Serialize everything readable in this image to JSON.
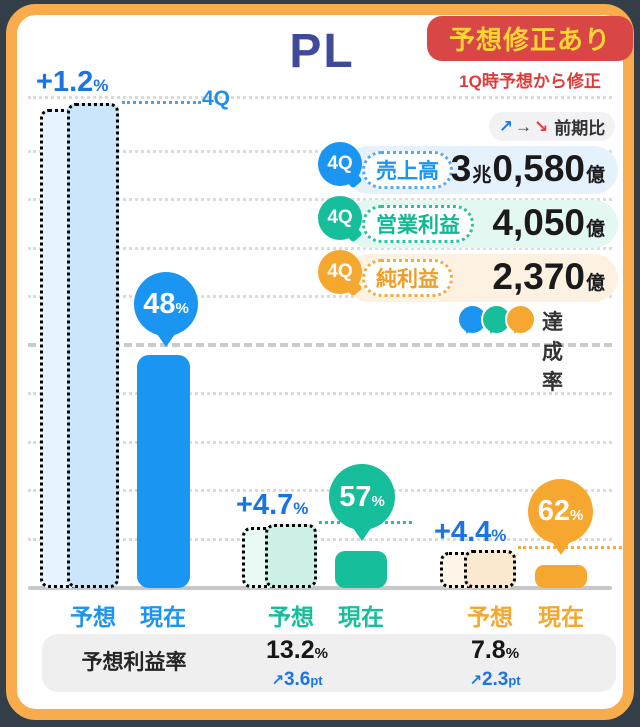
{
  "title": "PL",
  "badge": {
    "label": "予想修正あり",
    "subtitle": "1Q時予想から修正"
  },
  "prev_period": {
    "up": "↗",
    "flat": "→",
    "down": "↘",
    "label": "前期比"
  },
  "cards": [
    {
      "quarter": "4Q",
      "name": "売上高",
      "int1": "3",
      "unit1": "兆",
      "int2": "0,580",
      "unit2": "億"
    },
    {
      "quarter": "4Q",
      "name": "営業利益",
      "int2": "4,050",
      "unit2": "億"
    },
    {
      "quarter": "4Q",
      "name": "純利益",
      "int2": "2,370",
      "unit2": "億"
    }
  ],
  "achievement_legend": {
    "label": "達成率"
  },
  "groups": [
    {
      "revision": "+1.2",
      "revision_unit": "%",
      "achievement": "48",
      "achievement_unit": "%",
      "leader_label": "4Q",
      "forecast_label": "予想",
      "current_label": "現在"
    },
    {
      "revision": "+4.7",
      "revision_unit": "%",
      "achievement": "57",
      "achievement_unit": "%",
      "forecast_label": "予想",
      "current_label": "現在"
    },
    {
      "revision": "+4.4",
      "revision_unit": "%",
      "achievement": "62",
      "achievement_unit": "%",
      "forecast_label": "予想",
      "current_label": "現在"
    }
  ],
  "margin_table": {
    "header": "予想利益率",
    "cols": [
      {
        "value": "13.2",
        "unit": "%",
        "arrow": "↗",
        "delta": "3.6",
        "delta_unit": "pt"
      },
      {
        "value": "7.8",
        "unit": "%",
        "arrow": "↗",
        "delta": "2.3",
        "delta_unit": "pt"
      }
    ]
  },
  "colors": {
    "accent_blue": "#1B95F2",
    "accent_teal": "#16BE9C",
    "accent_orange": "#F6A72F",
    "revision_blue": "#1B74E4",
    "badge_red": "#D84646",
    "badge_yellow": "#FFD535",
    "frame_orange": "#F8AC4B",
    "title_navy": "#3F4A9B"
  },
  "chart_data": {
    "type": "bar",
    "title": "PL",
    "unit": "億円",
    "categories": [
      "売上高",
      "営業利益",
      "純利益"
    ],
    "series": [
      {
        "name": "売上高",
        "forecast": 30580,
        "forecast_display": "3兆0,580億",
        "revision_pct": 1.2,
        "achievement_pct": 48
      },
      {
        "name": "営業利益",
        "forecast": 4050,
        "forecast_display": "4,050億",
        "revision_pct": 4.7,
        "achievement_pct": 57
      },
      {
        "name": "純利益",
        "forecast": 2370,
        "forecast_display": "2,370億",
        "revision_pct": 4.4,
        "achievement_pct": 62
      }
    ],
    "bar_labels": [
      "予想",
      "現在"
    ],
    "annotations": [
      "+1.2%",
      "+4.7%",
      "+4.4%",
      "48%",
      "57%",
      "62%",
      "4Q"
    ],
    "margin_row": {
      "label": "予想利益率",
      "values": [
        {
          "pct": 13.2,
          "delta_pt": 3.6
        },
        {
          "pct": 7.8,
          "delta_pt": 2.3
        }
      ]
    },
    "legend": "達成率",
    "grid": "dotted gridlines at 10% steps of tallest forecast, 50% line dashed, baseline solid"
  }
}
